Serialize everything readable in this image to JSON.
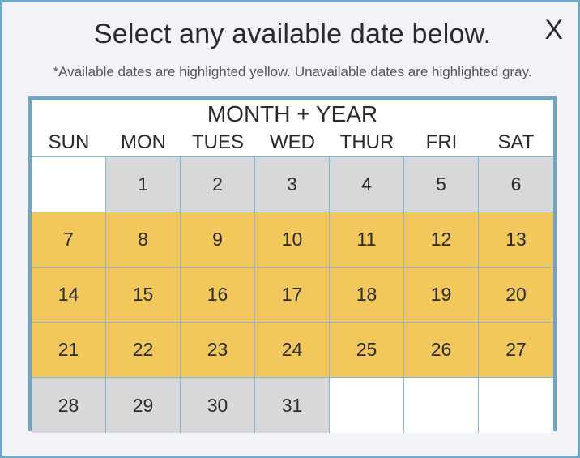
{
  "dialog": {
    "title": "Select any available date below.",
    "close_label": "X",
    "instructions": "*Available dates are highlighted yellow. Unavailable dates are highlighted gray."
  },
  "calendar": {
    "header": "MONTH + YEAR",
    "weekdays": [
      "SUN",
      "MON",
      "TUES",
      "WED",
      "THUR",
      "FRI",
      "SAT"
    ],
    "colors": {
      "available": "#f2c75c",
      "unavailable": "#d7d8da",
      "empty": "#ffffff",
      "border": "#6ea6c6"
    },
    "days": [
      {
        "label": "",
        "status": "empty"
      },
      {
        "label": "1",
        "status": "unavailable"
      },
      {
        "label": "2",
        "status": "unavailable"
      },
      {
        "label": "3",
        "status": "unavailable"
      },
      {
        "label": "4",
        "status": "unavailable"
      },
      {
        "label": "5",
        "status": "unavailable"
      },
      {
        "label": "6",
        "status": "unavailable"
      },
      {
        "label": "7",
        "status": "available"
      },
      {
        "label": "8",
        "status": "available"
      },
      {
        "label": "9",
        "status": "available"
      },
      {
        "label": "10",
        "status": "available"
      },
      {
        "label": "11",
        "status": "available"
      },
      {
        "label": "12",
        "status": "available"
      },
      {
        "label": "13",
        "status": "available"
      },
      {
        "label": "14",
        "status": "available"
      },
      {
        "label": "15",
        "status": "available"
      },
      {
        "label": "16",
        "status": "available"
      },
      {
        "label": "17",
        "status": "available"
      },
      {
        "label": "18",
        "status": "available"
      },
      {
        "label": "19",
        "status": "available"
      },
      {
        "label": "20",
        "status": "available"
      },
      {
        "label": "21",
        "status": "available"
      },
      {
        "label": "22",
        "status": "available"
      },
      {
        "label": "23",
        "status": "available"
      },
      {
        "label": "24",
        "status": "available"
      },
      {
        "label": "25",
        "status": "available"
      },
      {
        "label": "26",
        "status": "available"
      },
      {
        "label": "27",
        "status": "available"
      },
      {
        "label": "28",
        "status": "unavailable"
      },
      {
        "label": "29",
        "status": "unavailable"
      },
      {
        "label": "30",
        "status": "unavailable"
      },
      {
        "label": "31",
        "status": "unavailable"
      },
      {
        "label": "",
        "status": "empty"
      },
      {
        "label": "",
        "status": "empty"
      },
      {
        "label": "",
        "status": "empty"
      }
    ]
  }
}
